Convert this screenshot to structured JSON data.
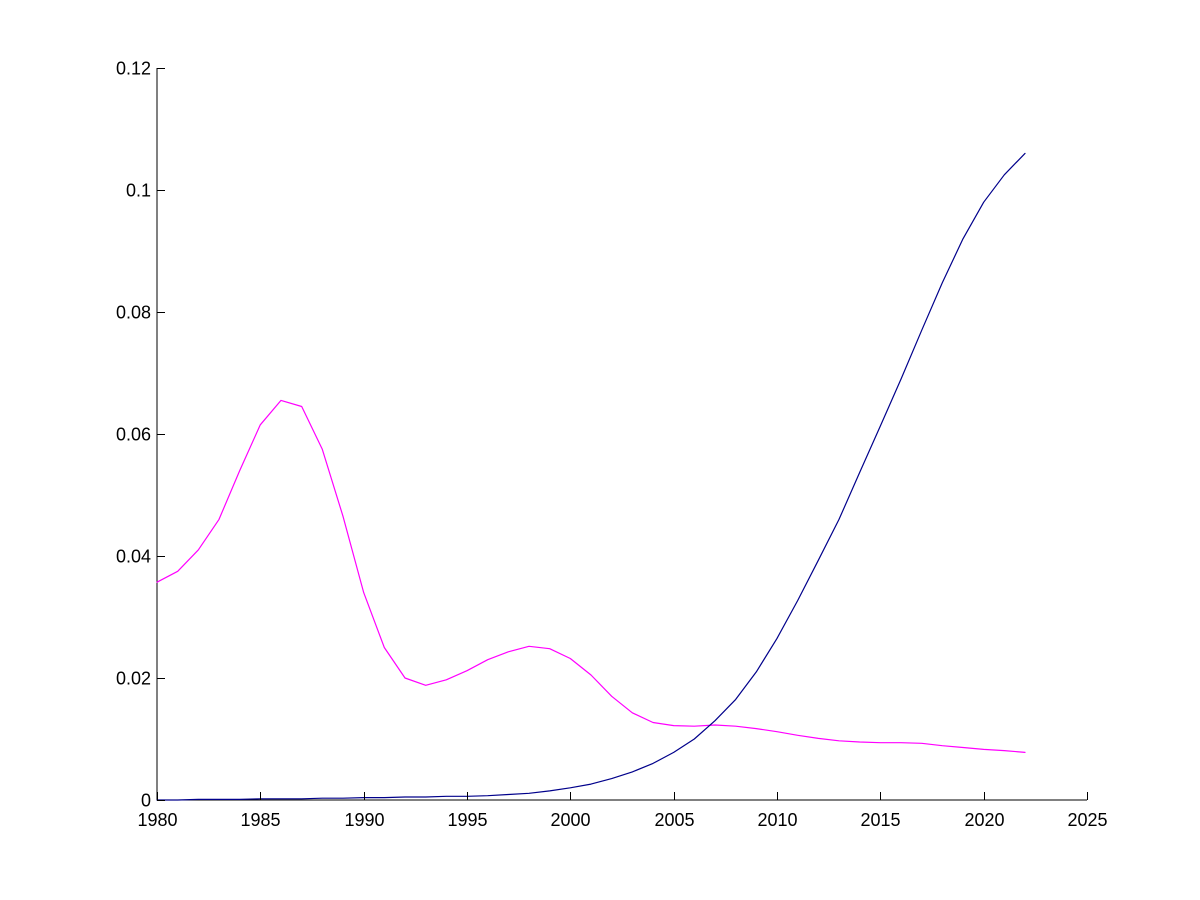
{
  "chart_data": {
    "type": "line",
    "title": "",
    "xlabel": "",
    "ylabel": "",
    "xlim": [
      1980,
      2025
    ],
    "ylim": [
      0,
      0.12
    ],
    "x_ticks": [
      1980,
      1985,
      1990,
      1995,
      2000,
      2005,
      2010,
      2015,
      2020,
      2025
    ],
    "y_ticks": [
      0,
      0.02,
      0.04,
      0.06,
      0.08,
      0.1,
      0.12
    ],
    "x_tick_labels": [
      "1980",
      "1985",
      "1990",
      "1995",
      "2000",
      "2005",
      "2010",
      "2015",
      "2020",
      "2025"
    ],
    "y_tick_labels": [
      "0",
      "0.02",
      "0.04",
      "0.06",
      "0.08",
      "0.1",
      "0.12"
    ],
    "grid": false,
    "legend": "none",
    "x": [
      1980,
      1981,
      1982,
      1983,
      1984,
      1985,
      1986,
      1987,
      1988,
      1989,
      1990,
      1991,
      1992,
      1993,
      1994,
      1995,
      1996,
      1997,
      1998,
      1999,
      2000,
      2001,
      2002,
      2003,
      2004,
      2005,
      2006,
      2007,
      2008,
      2009,
      2010,
      2011,
      2012,
      2013,
      2014,
      2015,
      2016,
      2017,
      2018,
      2019,
      2020,
      2021,
      2022
    ],
    "series": [
      {
        "color": "#ff00ff",
        "values": [
          0.0357,
          0.0375,
          0.041,
          0.046,
          0.054,
          0.0615,
          0.0655,
          0.0645,
          0.0575,
          0.0465,
          0.034,
          0.025,
          0.02,
          0.0188,
          0.0197,
          0.0212,
          0.023,
          0.0243,
          0.0252,
          0.0248,
          0.0232,
          0.0205,
          0.017,
          0.0143,
          0.0127,
          0.0122,
          0.0121,
          0.0123,
          0.0121,
          0.0117,
          0.0112,
          0.0106,
          0.0101,
          0.0097,
          0.0095,
          0.0094,
          0.0094,
          0.0093,
          0.0089,
          0.0086,
          0.0083,
          0.0081,
          0.0078
        ]
      },
      {
        "color": "#00008b",
        "values": [
          0.0,
          0.0,
          0.0001,
          0.0001,
          0.0001,
          0.0002,
          0.0002,
          0.0002,
          0.0003,
          0.0003,
          0.0004,
          0.0004,
          0.0005,
          0.0005,
          0.0006,
          0.0006,
          0.0007,
          0.0009,
          0.0011,
          0.0015,
          0.002,
          0.0026,
          0.0035,
          0.0046,
          0.006,
          0.0078,
          0.01,
          0.013,
          0.0165,
          0.021,
          0.0265,
          0.0327,
          0.0393,
          0.046,
          0.0537,
          0.0613,
          0.069,
          0.077,
          0.0848,
          0.092,
          0.098,
          0.1025,
          0.106
        ]
      }
    ]
  }
}
